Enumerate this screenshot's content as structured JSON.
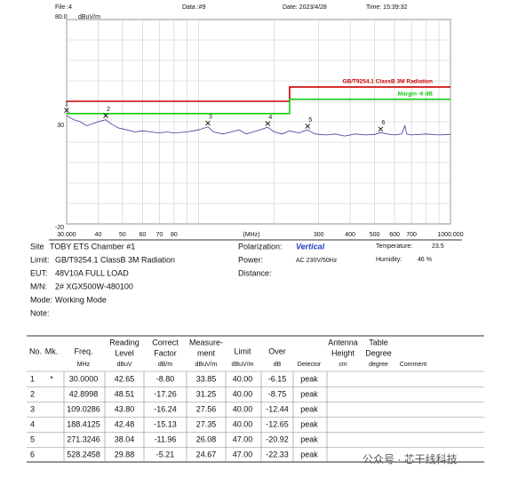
{
  "header": {
    "file": "File :4",
    "data": "Data :#9",
    "date": "Date: 2023/4/28",
    "time": "Time: 15:39:32"
  },
  "chart_data": {
    "type": "line",
    "y_unit": "dBuV/m",
    "x_label": "(MHz)",
    "xscale": "log",
    "xlim": [
      30,
      1000
    ],
    "xticks": [
      {
        "value": 30,
        "label": "30.000"
      },
      40,
      50,
      60,
      70,
      80,
      300,
      400,
      500,
      600,
      700,
      {
        "value": 1000,
        "label": "1000.000"
      }
    ],
    "xgrid": [
      30,
      40,
      50,
      60,
      70,
      80,
      90,
      100,
      200,
      300,
      400,
      500,
      600,
      700,
      800,
      900,
      1000
    ],
    "ylim": [
      -20,
      80
    ],
    "yticks": [
      {
        "value": 80,
        "label": "80.0"
      },
      30,
      -20
    ],
    "ygrid": [
      -20,
      -10,
      0,
      10,
      20,
      30,
      40,
      50,
      60,
      70,
      80
    ],
    "series": [
      {
        "color": "#3b3b9c",
        "x": [
          30,
          32,
          34,
          36,
          38,
          40,
          42.9,
          45,
          48,
          52,
          56,
          60,
          65,
          70,
          75,
          80,
          90,
          100,
          109,
          115,
          125,
          135,
          145,
          155,
          165,
          175,
          188,
          200,
          215,
          230,
          250,
          271,
          290,
          320,
          350,
          380,
          420,
          460,
          500,
          528,
          560,
          600,
          640,
          660,
          670,
          700,
          800,
          900,
          1000
        ],
        "values": [
          33,
          31,
          30,
          28,
          29,
          30,
          31,
          29,
          27,
          26,
          25,
          25.5,
          25,
          24.5,
          25,
          24.5,
          25,
          26,
          27.5,
          25,
          24,
          25,
          26,
          24,
          25,
          26,
          27.3,
          25,
          24,
          25.5,
          24.5,
          26,
          24,
          23.5,
          24,
          23,
          24,
          23.5,
          23.8,
          24.7,
          24,
          23.5,
          24,
          28,
          24,
          23.5,
          24,
          23.5,
          23.8
        ]
      }
    ],
    "limit_lines": [
      {
        "label": "GB/T9254.1 ClassB 3M Radiation",
        "color": "#cc0000",
        "x": [
          30,
          230,
          230,
          1000
        ],
        "values": [
          40,
          40,
          47,
          47
        ]
      },
      {
        "label": "Margin -6 dB",
        "color": "#11cc11",
        "x": [
          30,
          230,
          230,
          1000
        ],
        "values": [
          34,
          34,
          41,
          41
        ]
      }
    ],
    "markers": {
      "labels": [
        "1",
        "2",
        "3",
        "4",
        "5",
        "6"
      ],
      "x": [
        30,
        42.8998,
        109.0286,
        188.4125,
        271.3246,
        528.2458
      ],
      "values": [
        33.85,
        31.25,
        27.56,
        27.35,
        26.08,
        24.67
      ]
    }
  },
  "info": {
    "left": [
      {
        "label": "Site",
        "value": "TOBY ETS Chamber #1"
      },
      {
        "label": "Limit:",
        "value": "GB/T9254.1 ClassB 3M Radiation"
      },
      {
        "label": "EUT:",
        "value": "48V10A   FULL LOAD"
      },
      {
        "label": "M/N:",
        "value": "2#   XGX500W-480100"
      },
      {
        "label": "Mode:",
        "value": "Working Mode"
      },
      {
        "label": "Note:"
      }
    ],
    "right": [
      {
        "label": "Polarization:",
        "value": "Vertical"
      },
      {
        "label": "Power:",
        "value": "AC 230V/50Hz"
      },
      {
        "label": "Distance:"
      }
    ],
    "far_right": [
      {
        "label": "Temperature:",
        "value": "23.5"
      },
      {
        "label": "Humidity:",
        "value": "46 %"
      }
    ]
  },
  "table": {
    "header": [
      [
        "No."
      ],
      [
        "Mk."
      ],
      [
        "Freq."
      ],
      [
        "Reading",
        "Level"
      ],
      [
        "Correct",
        "Factor"
      ],
      [
        "Measure-",
        "ment"
      ],
      [
        "Limit"
      ],
      [
        "Over"
      ],
      null,
      [
        "Antenna",
        "Height"
      ],
      [
        "Table",
        "Degree"
      ],
      null
    ],
    "units": [
      null,
      null,
      "MHz",
      "dBuV",
      "dB/m",
      "dBuV/m",
      "dBuV/m",
      "dB",
      "Detector",
      "cm",
      "degree",
      "Comment"
    ],
    "rows": [
      [
        "1",
        "*",
        "30.0000",
        "42.65",
        "-8.80",
        "33.85",
        "40.00",
        "-6.15",
        "peak"
      ],
      [
        "2",
        null,
        "42.8998",
        "48.51",
        "-17.26",
        "31.25",
        "40.00",
        "-8.75",
        "peak"
      ],
      [
        "3",
        null,
        "109.0286",
        "43.80",
        "-16.24",
        "27.56",
        "40.00",
        "-12.44",
        "peak"
      ],
      [
        "4",
        null,
        "188.4125",
        "42.48",
        "-15.13",
        "27.35",
        "40.00",
        "-12.65",
        "peak"
      ],
      [
        "5",
        null,
        "271.3246",
        "38.04",
        "-11.96",
        "26.08",
        "47.00",
        "-20.92",
        "peak"
      ],
      [
        "6",
        null,
        "528.2458",
        "29.88",
        "-5.21",
        "24.67",
        "47.00",
        "-22.33",
        "peak"
      ]
    ]
  },
  "watermark": "公众号 · 芯干线科技"
}
